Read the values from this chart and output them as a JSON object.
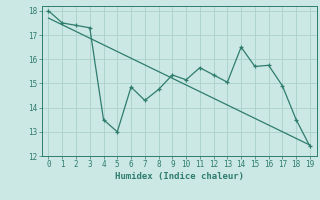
{
  "x": [
    0,
    1,
    2,
    3,
    4,
    5,
    6,
    7,
    8,
    9,
    10,
    11,
    12,
    13,
    14,
    15,
    16,
    17,
    18,
    19
  ],
  "y_main": [
    18.0,
    17.5,
    17.4,
    17.3,
    13.5,
    13.0,
    14.85,
    14.3,
    14.75,
    15.35,
    15.15,
    15.65,
    15.35,
    15.05,
    16.5,
    15.7,
    15.75,
    14.9,
    13.5,
    12.4
  ],
  "trend_x": [
    0,
    19
  ],
  "trend_y": [
    17.7,
    12.45
  ],
  "line_color": "#2e7d6e",
  "bg_color": "#cce8e4",
  "grid_color": "#afd4ce",
  "xlabel": "Humidex (Indice chaleur)",
  "ylim": [
    12,
    18.2
  ],
  "xlim": [
    -0.5,
    19.5
  ],
  "yticks": [
    12,
    13,
    14,
    15,
    16,
    17,
    18
  ],
  "xticks": [
    0,
    1,
    2,
    3,
    4,
    5,
    6,
    7,
    8,
    9,
    10,
    11,
    12,
    13,
    14,
    15,
    16,
    17,
    18,
    19
  ]
}
